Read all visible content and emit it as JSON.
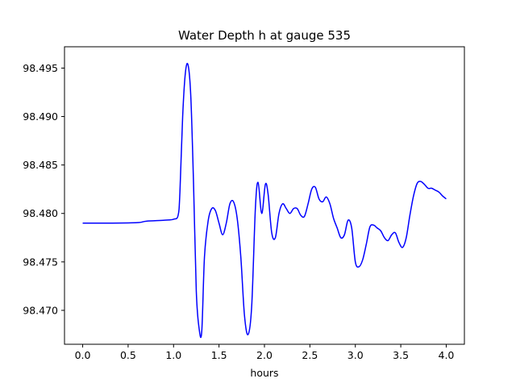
{
  "chart_data": {
    "type": "line",
    "title": "Water Depth h at gauge 535",
    "xlabel": "hours",
    "ylabel": "",
    "xlim": [
      -0.2,
      4.2
    ],
    "ylim": [
      98.4665,
      98.4972
    ],
    "grid": false,
    "legend": "none",
    "xticks": [
      0.0,
      0.5,
      1.0,
      1.5,
      2.0,
      2.5,
      3.0,
      3.5,
      4.0
    ],
    "xtick_labels": [
      "0.0",
      "0.5",
      "1.0",
      "1.5",
      "2.0",
      "2.5",
      "3.0",
      "3.5",
      "4.0"
    ],
    "yticks": [
      98.47,
      98.475,
      98.48,
      98.485,
      98.49,
      98.495
    ],
    "ytick_labels": [
      "98.470",
      "98.475",
      "98.480",
      "98.485",
      "98.490",
      "98.495"
    ],
    "series": [
      {
        "color": "#0000ff",
        "x": [
          0.0,
          0.3,
          0.6,
          0.7,
          0.9,
          1.0,
          1.05,
          1.07,
          1.1,
          1.13,
          1.16,
          1.19,
          1.22,
          1.25,
          1.28,
          1.31,
          1.34,
          1.38,
          1.42,
          1.46,
          1.5,
          1.54,
          1.58,
          1.62,
          1.66,
          1.7,
          1.74,
          1.78,
          1.82,
          1.86,
          1.9,
          1.93,
          1.97,
          2.01,
          2.04,
          2.08,
          2.12,
          2.16,
          2.2,
          2.24,
          2.28,
          2.32,
          2.36,
          2.4,
          2.44,
          2.48,
          2.52,
          2.56,
          2.6,
          2.64,
          2.68,
          2.72,
          2.76,
          2.8,
          2.84,
          2.88,
          2.92,
          2.96,
          3.0,
          3.04,
          3.08,
          3.12,
          3.16,
          3.2,
          3.24,
          3.28,
          3.32,
          3.36,
          3.4,
          3.44,
          3.48,
          3.52,
          3.56,
          3.6,
          3.64,
          3.68,
          3.72,
          3.76,
          3.8,
          3.84,
          3.88,
          3.92,
          3.96,
          4.0
        ],
        "y": [
          98.479,
          98.479,
          98.47905,
          98.4792,
          98.4793,
          98.4794,
          98.4798,
          98.4822,
          98.49,
          98.4945,
          98.4953,
          98.492,
          98.483,
          98.472,
          98.4682,
          98.4678,
          98.4755,
          98.4792,
          98.4805,
          98.4803,
          98.479,
          98.4778,
          98.479,
          98.481,
          98.4812,
          98.4795,
          98.4755,
          98.4695,
          98.4675,
          98.4705,
          98.4805,
          98.4832,
          98.48,
          98.483,
          98.482,
          98.478,
          98.4775,
          98.48,
          98.481,
          98.4805,
          98.48,
          98.4805,
          98.4805,
          98.4798,
          98.4797,
          98.481,
          98.4825,
          98.4827,
          98.4815,
          98.4812,
          98.4817,
          98.481,
          98.4795,
          98.4785,
          98.4775,
          98.4778,
          98.4793,
          98.4785,
          98.475,
          98.4745,
          98.4752,
          98.4768,
          98.4786,
          98.4788,
          98.4785,
          98.4782,
          98.4775,
          98.4772,
          98.4778,
          98.478,
          98.477,
          98.4765,
          98.4775,
          98.4798,
          98.4818,
          98.4831,
          98.4833,
          98.483,
          98.4826,
          98.4826,
          98.4824,
          98.4822,
          98.4818,
          98.4815
        ]
      }
    ]
  }
}
